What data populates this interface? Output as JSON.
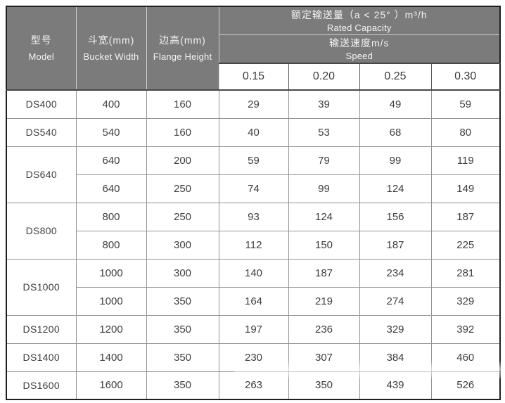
{
  "colors": {
    "header_bg": "#7b7b7b",
    "header_text": "#f4f4f4",
    "outer_border": "#1f1f1f",
    "grid_line": "#949494",
    "body_text": "#3e3e3e"
  },
  "table": {
    "header": {
      "model": {
        "zh": "型号",
        "en": "Model"
      },
      "bucket_width": {
        "zh": "斗宽(mm)",
        "en": "Bucket Width"
      },
      "flange_height": {
        "zh": "边高(mm)",
        "en": "Flange Height"
      },
      "rated_capacity": {
        "zh": "额定输送量（a < 25° ）m³/h",
        "en": "Rated Capacity"
      },
      "speed": {
        "zh": "输送速度m/s",
        "en": "Speed"
      },
      "speeds": [
        "0.15",
        "0.20",
        "0.25",
        "0.30"
      ]
    },
    "rows": [
      {
        "model": "DS400",
        "rowspan": 1,
        "width": "400",
        "height": "160",
        "caps": [
          "29",
          "39",
          "49",
          "59"
        ]
      },
      {
        "model": "DS540",
        "rowspan": 1,
        "width": "540",
        "height": "160",
        "caps": [
          "40",
          "53",
          "68",
          "80"
        ]
      },
      {
        "model": "DS640",
        "rowspan": 2,
        "width": "640",
        "height": "200",
        "caps": [
          "59",
          "79",
          "99",
          "119"
        ]
      },
      {
        "model": null,
        "inner": true,
        "width": "640",
        "height": "250",
        "caps": [
          "74",
          "99",
          "124",
          "149"
        ]
      },
      {
        "model": "DS800",
        "rowspan": 2,
        "width": "800",
        "height": "250",
        "caps": [
          "93",
          "124",
          "156",
          "187"
        ]
      },
      {
        "model": null,
        "inner": true,
        "width": "800",
        "height": "300",
        "caps": [
          "112",
          "150",
          "187",
          "225"
        ]
      },
      {
        "model": "DS1000",
        "rowspan": 2,
        "width": "1000",
        "height": "300",
        "caps": [
          "140",
          "187",
          "234",
          "281"
        ]
      },
      {
        "model": null,
        "inner": true,
        "width": "1000",
        "height": "350",
        "caps": [
          "164",
          "219",
          "274",
          "329"
        ]
      },
      {
        "model": "DS1200",
        "rowspan": 1,
        "width": "1200",
        "height": "350",
        "caps": [
          "197",
          "236",
          "329",
          "392"
        ]
      },
      {
        "model": "DS1400",
        "rowspan": 1,
        "width": "1400",
        "height": "350",
        "caps": [
          "230",
          "307",
          "384",
          "460"
        ]
      },
      {
        "model": "DS1600",
        "rowspan": 1,
        "width": "1600",
        "height": "350",
        "caps": [
          "263",
          "350",
          "439",
          "526"
        ]
      }
    ]
  }
}
